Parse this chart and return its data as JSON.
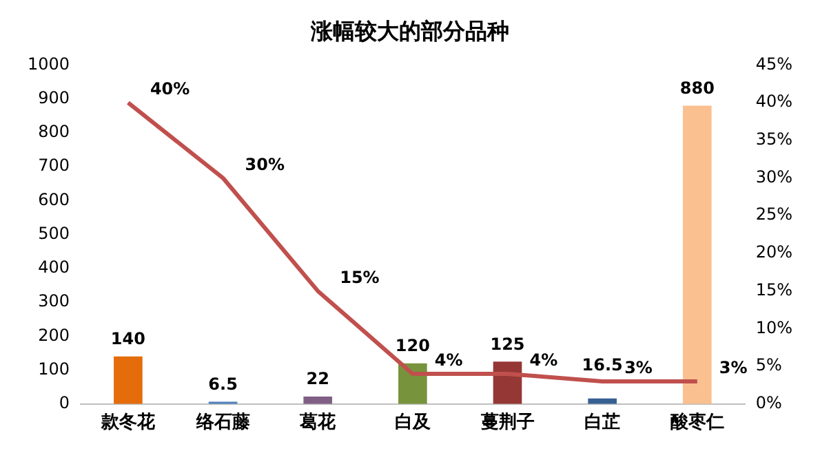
{
  "chart_data": {
    "type": "bar",
    "title": "涨幅较大的部分品种",
    "categories": [
      "款冬花",
      "络石藤",
      "葛花",
      "白及",
      "蔓荆子",
      "白芷",
      "酸枣仁"
    ],
    "series": [
      {
        "colors": [
          "#e46c0a",
          "#4f81bd",
          "#7f6084",
          "#77933c",
          "#953735",
          "#376092",
          "#fac090"
        ],
        "values": [
          140,
          6.5,
          22,
          120,
          125,
          16.5,
          880
        ],
        "value_labels": [
          "140",
          "6.5",
          "22",
          "120",
          "125",
          "16.5",
          "880"
        ]
      },
      {
        "type": "line",
        "axis": "y2",
        "color": "#c0504d",
        "values": [
          40,
          30,
          15,
          4,
          4,
          3,
          3
        ],
        "value_labels": [
          "40%",
          "30%",
          "15%",
          "4%",
          "4%",
          "3%",
          "3%"
        ]
      }
    ],
    "ylim": [
      0,
      1000
    ],
    "yticks": [
      0,
      100,
      200,
      300,
      400,
      500,
      600,
      700,
      800,
      900,
      1000
    ],
    "y2lim": [
      0,
      45
    ],
    "y2ticks": [
      {
        "value": 0,
        "label": "0%"
      },
      {
        "value": 5,
        "label": "5%"
      },
      {
        "value": 10,
        "label": "10%"
      },
      {
        "value": 15,
        "label": "15%"
      },
      {
        "value": 20,
        "label": "20%"
      },
      {
        "value": 25,
        "label": "25%"
      },
      {
        "value": 30,
        "label": "30%"
      },
      {
        "value": 35,
        "label": "35%"
      },
      {
        "value": 40,
        "label": "40%"
      },
      {
        "value": 45,
        "label": "45%"
      }
    ],
    "grid": false,
    "legend": false,
    "marker": "none",
    "line_style": "solid"
  }
}
